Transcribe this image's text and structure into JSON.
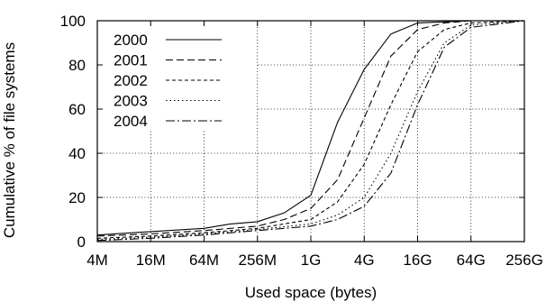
{
  "chart_data": {
    "type": "line",
    "title": "",
    "xlabel": "Used space (bytes)",
    "ylabel": "Cumulative % of file systems",
    "x_scale": "log2",
    "x_unit": "bytes",
    "x_tick_labels": [
      "4M",
      "16M",
      "64M",
      "256M",
      "1G",
      "4G",
      "16G",
      "64G",
      "256G"
    ],
    "x_tick_values": [
      "4M",
      "16M",
      "64M",
      "256M",
      "1G",
      "4G",
      "16G",
      "64G",
      "256G"
    ],
    "xlim": [
      "4M",
      "256G"
    ],
    "y_ticks": [
      0,
      20,
      40,
      60,
      80,
      100
    ],
    "ylim": [
      0,
      100
    ],
    "grid": true,
    "legend_position": "top-left",
    "series": [
      {
        "name": "2000",
        "dash": "",
        "points": [
          {
            "x": "4M",
            "y": 3
          },
          {
            "x": "16M",
            "y": 4.5
          },
          {
            "x": "64M",
            "y": 6
          },
          {
            "x": "128M",
            "y": 8
          },
          {
            "x": "256M",
            "y": 9
          },
          {
            "x": "512M",
            "y": 13
          },
          {
            "x": "1G",
            "y": 21
          },
          {
            "x": "2G",
            "y": 54
          },
          {
            "x": "4G",
            "y": 78
          },
          {
            "x": "8G",
            "y": 94
          },
          {
            "x": "16G",
            "y": 99
          },
          {
            "x": "64G",
            "y": 100
          },
          {
            "x": "256G",
            "y": 100
          }
        ]
      },
      {
        "name": "2001",
        "dash": "8,4",
        "points": [
          {
            "x": "4M",
            "y": 2.5
          },
          {
            "x": "16M",
            "y": 3.5
          },
          {
            "x": "64M",
            "y": 5
          },
          {
            "x": "256M",
            "y": 7
          },
          {
            "x": "512M",
            "y": 10
          },
          {
            "x": "1G",
            "y": 15
          },
          {
            "x": "2G",
            "y": 28
          },
          {
            "x": "4G",
            "y": 56
          },
          {
            "x": "8G",
            "y": 84
          },
          {
            "x": "16G",
            "y": 96
          },
          {
            "x": "32G",
            "y": 99
          },
          {
            "x": "64G",
            "y": 100
          },
          {
            "x": "256G",
            "y": 100
          }
        ]
      },
      {
        "name": "2002",
        "dash": "4,3",
        "points": [
          {
            "x": "4M",
            "y": 1.5
          },
          {
            "x": "16M",
            "y": 2.5
          },
          {
            "x": "64M",
            "y": 4
          },
          {
            "x": "256M",
            "y": 6
          },
          {
            "x": "1G",
            "y": 10
          },
          {
            "x": "2G",
            "y": 18
          },
          {
            "x": "4G",
            "y": 35
          },
          {
            "x": "8G",
            "y": 62
          },
          {
            "x": "16G",
            "y": 86
          },
          {
            "x": "32G",
            "y": 96
          },
          {
            "x": "64G",
            "y": 99
          },
          {
            "x": "256G",
            "y": 100
          }
        ]
      },
      {
        "name": "2003",
        "dash": "1.5,3",
        "points": [
          {
            "x": "4M",
            "y": 1
          },
          {
            "x": "16M",
            "y": 2
          },
          {
            "x": "64M",
            "y": 3.5
          },
          {
            "x": "256M",
            "y": 5.5
          },
          {
            "x": "1G",
            "y": 8
          },
          {
            "x": "2G",
            "y": 12
          },
          {
            "x": "4G",
            "y": 20
          },
          {
            "x": "8G",
            "y": 40
          },
          {
            "x": "16G",
            "y": 68
          },
          {
            "x": "32G",
            "y": 90
          },
          {
            "x": "64G",
            "y": 98
          },
          {
            "x": "256G",
            "y": 100
          }
        ]
      },
      {
        "name": "2004",
        "dash": "10,3,2,3",
        "points": [
          {
            "x": "4M",
            "y": 0.5
          },
          {
            "x": "16M",
            "y": 1.5
          },
          {
            "x": "64M",
            "y": 3
          },
          {
            "x": "256M",
            "y": 5
          },
          {
            "x": "1G",
            "y": 7
          },
          {
            "x": "2G",
            "y": 10
          },
          {
            "x": "4G",
            "y": 16
          },
          {
            "x": "8G",
            "y": 31
          },
          {
            "x": "16G",
            "y": 62
          },
          {
            "x": "32G",
            "y": 88
          },
          {
            "x": "64G",
            "y": 97
          },
          {
            "x": "256G",
            "y": 100
          }
        ]
      }
    ]
  }
}
